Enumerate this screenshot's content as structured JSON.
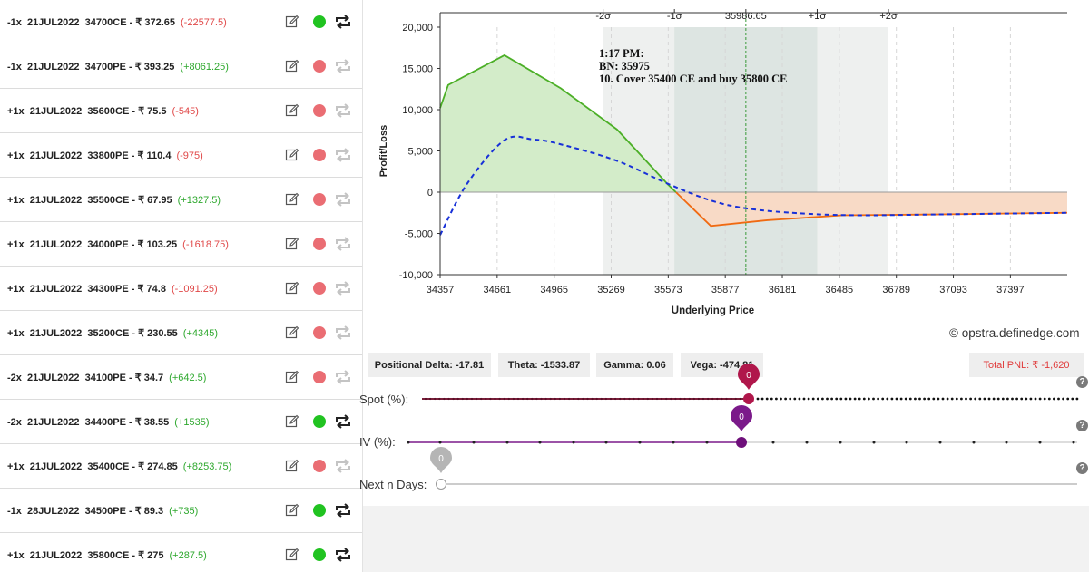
{
  "positions": [
    {
      "qty": "-1x",
      "expiry": "21JUL2022",
      "strike": "34700CE",
      "price": "- ₹ 372.65",
      "pnl": "(-22577.5)",
      "pnl_sign": "neg",
      "active": true
    },
    {
      "qty": "-1x",
      "expiry": "21JUL2022",
      "strike": "34700PE",
      "price": "- ₹ 393.25",
      "pnl": "(+8061.25)",
      "pnl_sign": "pos",
      "active": false
    },
    {
      "qty": "+1x",
      "expiry": "21JUL2022",
      "strike": "35600CE",
      "price": "- ₹ 75.5",
      "pnl": "(-545)",
      "pnl_sign": "neg",
      "active": false
    },
    {
      "qty": "+1x",
      "expiry": "21JUL2022",
      "strike": "33800PE",
      "price": "- ₹ 110.4",
      "pnl": "(-975)",
      "pnl_sign": "neg",
      "active": false
    },
    {
      "qty": "+1x",
      "expiry": "21JUL2022",
      "strike": "35500CE",
      "price": "- ₹ 67.95",
      "pnl": "(+1327.5)",
      "pnl_sign": "pos",
      "active": false
    },
    {
      "qty": "+1x",
      "expiry": "21JUL2022",
      "strike": "34000PE",
      "price": "- ₹ 103.25",
      "pnl": "(-1618.75)",
      "pnl_sign": "neg",
      "active": false
    },
    {
      "qty": "+1x",
      "expiry": "21JUL2022",
      "strike": "34300PE",
      "price": "- ₹ 74.8",
      "pnl": "(-1091.25)",
      "pnl_sign": "neg",
      "active": false
    },
    {
      "qty": "+1x",
      "expiry": "21JUL2022",
      "strike": "35200CE",
      "price": "- ₹ 230.55",
      "pnl": "(+4345)",
      "pnl_sign": "pos",
      "active": false
    },
    {
      "qty": "-2x",
      "expiry": "21JUL2022",
      "strike": "34100PE",
      "price": "- ₹ 34.7",
      "pnl": "(+642.5)",
      "pnl_sign": "pos",
      "active": false
    },
    {
      "qty": "-2x",
      "expiry": "21JUL2022",
      "strike": "34400PE",
      "price": "- ₹ 38.55",
      "pnl": "(+1535)",
      "pnl_sign": "pos",
      "active": true
    },
    {
      "qty": "+1x",
      "expiry": "21JUL2022",
      "strike": "35400CE",
      "price": "- ₹ 274.85",
      "pnl": "(+8253.75)",
      "pnl_sign": "pos",
      "active": false
    },
    {
      "qty": "-1x",
      "expiry": "28JUL2022",
      "strike": "34500PE",
      "price": "- ₹ 89.3",
      "pnl": "(+735)",
      "pnl_sign": "pos",
      "active": true
    },
    {
      "qty": "+1x",
      "expiry": "21JUL2022",
      "strike": "35800CE",
      "price": "- ₹ 275",
      "pnl": "(+287.5)",
      "pnl_sign": "pos",
      "active": true
    }
  ],
  "chart_data": {
    "type": "line",
    "xlabel": "Underlying Price",
    "ylabel": "Profit/Loss",
    "xlim": [
      34357,
      37700
    ],
    "ylim": [
      -10000,
      20000
    ],
    "x_ticks": [
      34357,
      34661,
      34965,
      35269,
      35573,
      35877,
      36181,
      36485,
      36789,
      37093,
      37397
    ],
    "y_ticks": [
      -10000,
      -5000,
      0,
      5000,
      10000,
      15000,
      20000
    ],
    "y_tick_labels": [
      "-10,000",
      "-5,000",
      "0",
      "5,000",
      "10,000",
      "15,000",
      "20,000"
    ],
    "spot": 35986.65,
    "spot_label": "35986.65",
    "sigma_bands": [
      {
        "label": "-2σ",
        "x": 35226
      },
      {
        "label": "-1σ",
        "x": 35606
      },
      {
        "label": "+1σ",
        "x": 36367
      },
      {
        "label": "+2σ",
        "x": 36747
      }
    ],
    "annotation": [
      "1:17 PM:",
      "BN: 35975",
      "10. Cover 35400 CE and buy 35800 CE"
    ],
    "series": [
      {
        "name": "expiry",
        "style": "solid",
        "x": [
          34357,
          34400,
          34700,
          35000,
          35300,
          35573,
          35800,
          36100,
          36500,
          37000,
          37700
        ],
        "y": [
          10200,
          13000,
          16600,
          12600,
          7600,
          900,
          -4100,
          -3400,
          -2800,
          -2700,
          -2500
        ]
      },
      {
        "name": "target",
        "style": "dashed",
        "x": [
          34357,
          34500,
          34700,
          34850,
          35000,
          35300,
          35573,
          35800,
          36000,
          36300,
          36600,
          37000,
          37700
        ],
        "y": [
          -5200,
          1000,
          6300,
          6400,
          5800,
          3800,
          1000,
          -1000,
          -2000,
          -2600,
          -2800,
          -2700,
          -2500
        ]
      }
    ],
    "colors": {
      "profit_fill": "#d3ecc9",
      "loss_fill": "#f8dac6",
      "expiry_profit": "#4caf27",
      "expiry_loss": "#f06a12",
      "target": "#1730d8",
      "band_outer": "#eef0ef",
      "band_inner": "#dde5e2",
      "spot_line": "#3a9a3a"
    }
  },
  "greeks": {
    "delta": "Positional Delta: -17.81",
    "theta": "Theta: -1533.87",
    "gamma": "Gamma: 0.06",
    "vega": "Vega: -474.81",
    "total_pnl": "Total PNL: ₹ -1,620"
  },
  "watermark": "© opstra.definedge.com",
  "sliders": {
    "spot": {
      "label": "Spot (%):",
      "value": "0"
    },
    "iv": {
      "label": "IV (%):",
      "value": "0"
    },
    "days": {
      "label": "Next n Days:",
      "value": "0"
    },
    "help": "?"
  }
}
